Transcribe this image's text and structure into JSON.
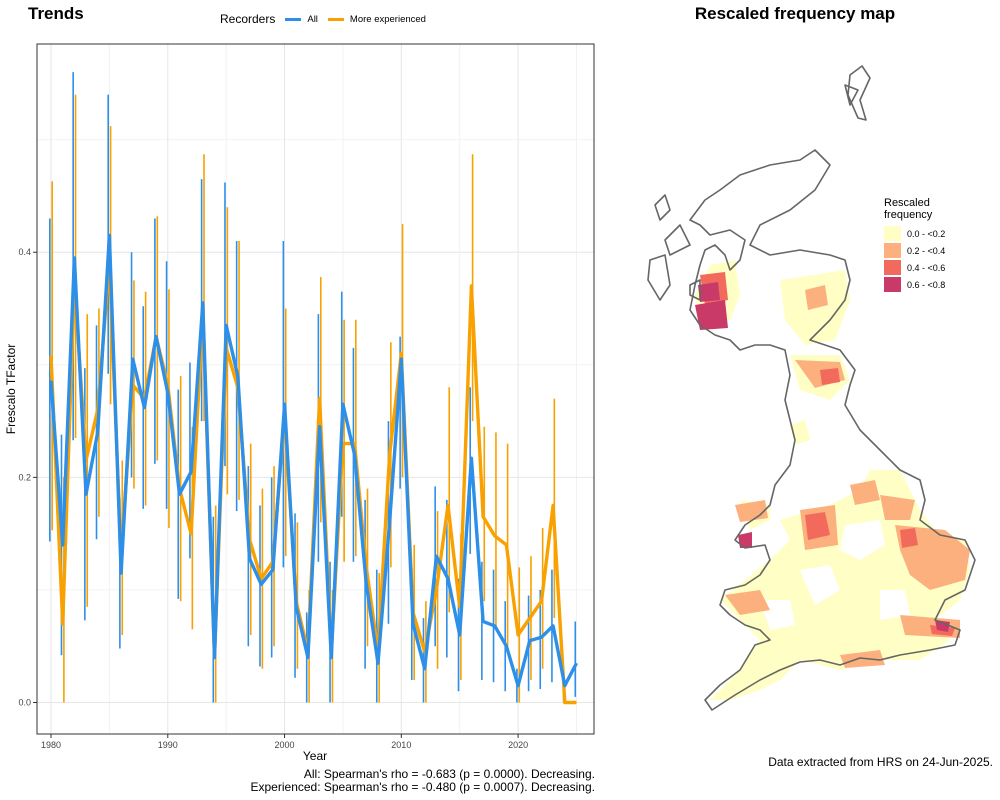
{
  "titles": {
    "trends": "Trends",
    "map": "Rescaled frequency map"
  },
  "legend": {
    "title": "Recorders",
    "items": [
      {
        "label": "All",
        "color": "#2e8fe8"
      },
      {
        "label": "More experienced",
        "color": "#f8a100"
      }
    ]
  },
  "chart_data": {
    "type": "line",
    "xlabel": "Year",
    "ylabel": "Frescalo TFactor",
    "xlim": [
      1978.8,
      2026.5
    ],
    "ylim": [
      -0.028,
      0.585
    ],
    "xticks": [
      1980,
      1990,
      2000,
      2010,
      2020
    ],
    "yticks": [
      0.0,
      0.2,
      0.4
    ],
    "ytick_labels": [
      "0.0",
      "0.2",
      "0.4"
    ],
    "grid": true,
    "legend_position": "top",
    "years": [
      1980,
      1981,
      1982,
      1983,
      1984,
      1985,
      1986,
      1987,
      1988,
      1989,
      1990,
      1991,
      1992,
      1993,
      1994,
      1995,
      1996,
      1997,
      1998,
      1999,
      2000,
      2001,
      2002,
      2003,
      2004,
      2005,
      2006,
      2007,
      2008,
      2009,
      2010,
      2011,
      2012,
      2013,
      2014,
      2015,
      2016,
      2017,
      2018,
      2019,
      2020,
      2021,
      2022,
      2023,
      2024,
      2025
    ],
    "series": [
      {
        "name": "All",
        "color": "#2e8fe8",
        "values": [
          0.286,
          0.14,
          0.395,
          0.185,
          0.24,
          0.415,
          0.115,
          0.305,
          0.262,
          0.325,
          0.275,
          0.185,
          0.205,
          0.355,
          0.04,
          0.335,
          0.29,
          0.128,
          0.105,
          0.118,
          0.265,
          0.085,
          0.04,
          0.245,
          0.04,
          0.265,
          0.22,
          0.105,
          0.035,
          0.16,
          0.305,
          0.07,
          0.03,
          0.13,
          0.11,
          0.06,
          0.217,
          0.072,
          0.068,
          0.05,
          0.015,
          0.055,
          0.058,
          0.068,
          0.015,
          0.035
        ],
        "lower": [
          0.143,
          0.042,
          0.233,
          0.073,
          0.145,
          0.292,
          0.048,
          0.2,
          0.172,
          0.212,
          0.172,
          0.092,
          0.128,
          0.25,
          0.0,
          0.21,
          0.17,
          0.05,
          0.032,
          0.04,
          0.12,
          0.022,
          0.0,
          0.125,
          0.0,
          0.165,
          0.125,
          0.03,
          0.0,
          0.07,
          0.19,
          0.02,
          0.0,
          0.05,
          0.04,
          0.01,
          0.132,
          0.02,
          0.018,
          0.01,
          0.0,
          0.01,
          0.012,
          0.018,
          0.0,
          0.005
        ],
        "upper": [
          0.43,
          0.238,
          0.56,
          0.297,
          0.335,
          0.54,
          0.182,
          0.4,
          0.352,
          0.43,
          0.392,
          0.278,
          0.302,
          0.465,
          0.165,
          0.462,
          0.41,
          0.21,
          0.175,
          0.2,
          0.41,
          0.168,
          0.08,
          0.345,
          0.125,
          0.365,
          0.315,
          0.18,
          0.118,
          0.25,
          0.325,
          0.12,
          0.075,
          0.192,
          0.18,
          0.11,
          0.28,
          0.125,
          0.118,
          0.09,
          0.03,
          0.095,
          0.1,
          0.118,
          0.03,
          0.072
        ]
      },
      {
        "name": "More experienced",
        "color": "#f8a100",
        "values": [
          0.308,
          0.07,
          0.375,
          0.215,
          0.26,
          0.39,
          0.13,
          0.282,
          0.27,
          0.325,
          0.282,
          0.19,
          0.15,
          0.345,
          0.04,
          0.315,
          0.28,
          0.145,
          0.11,
          0.125,
          0.255,
          0.09,
          0.045,
          0.27,
          0.045,
          0.23,
          0.23,
          0.12,
          0.045,
          0.22,
          0.31,
          0.08,
          0.045,
          0.1,
          0.175,
          0.085,
          0.37,
          0.165,
          0.148,
          0.14,
          0.06,
          0.075,
          0.09,
          0.175,
          0.0,
          0.0
        ],
        "lower": [
          0.153,
          0.0,
          0.235,
          0.085,
          0.165,
          0.265,
          0.06,
          0.19,
          0.175,
          0.215,
          0.155,
          0.09,
          0.065,
          0.25,
          0.0,
          0.185,
          0.18,
          0.06,
          0.03,
          0.05,
          0.13,
          0.03,
          0.0,
          0.16,
          0.0,
          0.125,
          0.13,
          0.05,
          0.0,
          0.12,
          0.2,
          0.02,
          0.0,
          0.03,
          0.08,
          0.02,
          0.25,
          0.09,
          0.065,
          0.05,
          0.0,
          0.02,
          0.03,
          0.075,
          0.0,
          0.0
        ],
        "upper": [
          0.463,
          0.2,
          0.54,
          0.345,
          0.35,
          0.512,
          0.215,
          0.375,
          0.365,
          0.432,
          0.367,
          0.29,
          0.245,
          0.487,
          0.175,
          0.44,
          0.41,
          0.23,
          0.19,
          0.21,
          0.35,
          0.16,
          0.1,
          0.378,
          0.1,
          0.34,
          0.34,
          0.19,
          0.115,
          0.32,
          0.425,
          0.14,
          0.09,
          0.17,
          0.28,
          0.15,
          0.487,
          0.245,
          0.24,
          0.23,
          0.12,
          0.13,
          0.155,
          0.27,
          0.0,
          0.0
        ]
      }
    ]
  },
  "stats": {
    "line1": "All: Spearman's rho = -0.683 (p = 0.0000). Decreasing.",
    "line2": "Experienced: Spearman's rho = -0.480 (p = 0.0007). Decreasing."
  },
  "map": {
    "legend_title_1": "Rescaled",
    "legend_title_2": "frequency",
    "classes": [
      {
        "label": "0.0 - <0.2",
        "color": "#ffffc5"
      },
      {
        "label": "0.2 - <0.4",
        "color": "#fbb07e"
      },
      {
        "label": "0.4 - <0.6",
        "color": "#f26a5c"
      },
      {
        "label": "0.6 - <0.8",
        "color": "#c93a68"
      }
    ],
    "outline_color": "#666666"
  },
  "footer": {
    "note": "Data extracted from HRS on 24-Jun-2025."
  }
}
